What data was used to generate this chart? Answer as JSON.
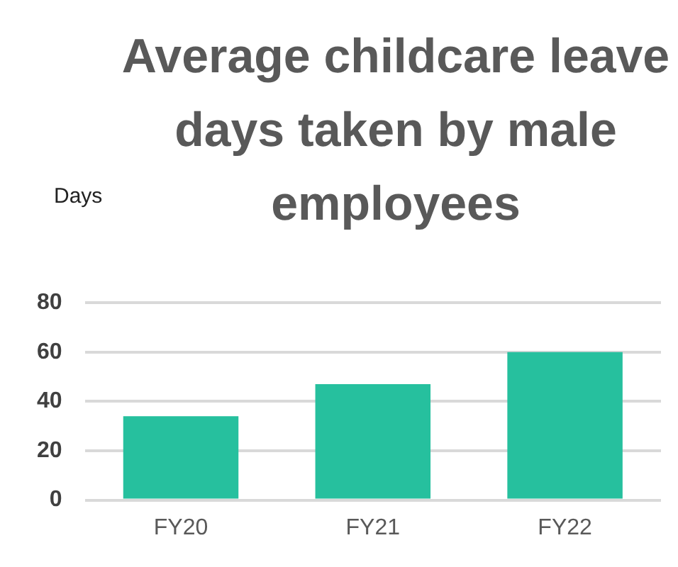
{
  "chart_data": {
    "type": "bar",
    "title": "Average childcare leave days taken by male employees",
    "ylabel": "Days",
    "categories": [
      "FY20",
      "FY21",
      "FY22"
    ],
    "values": [
      34,
      47,
      60
    ],
    "color": "#26c09e",
    "ylim": [
      0,
      80
    ],
    "yticks": [
      0,
      20,
      40,
      60,
      80
    ],
    "grid": "y"
  }
}
